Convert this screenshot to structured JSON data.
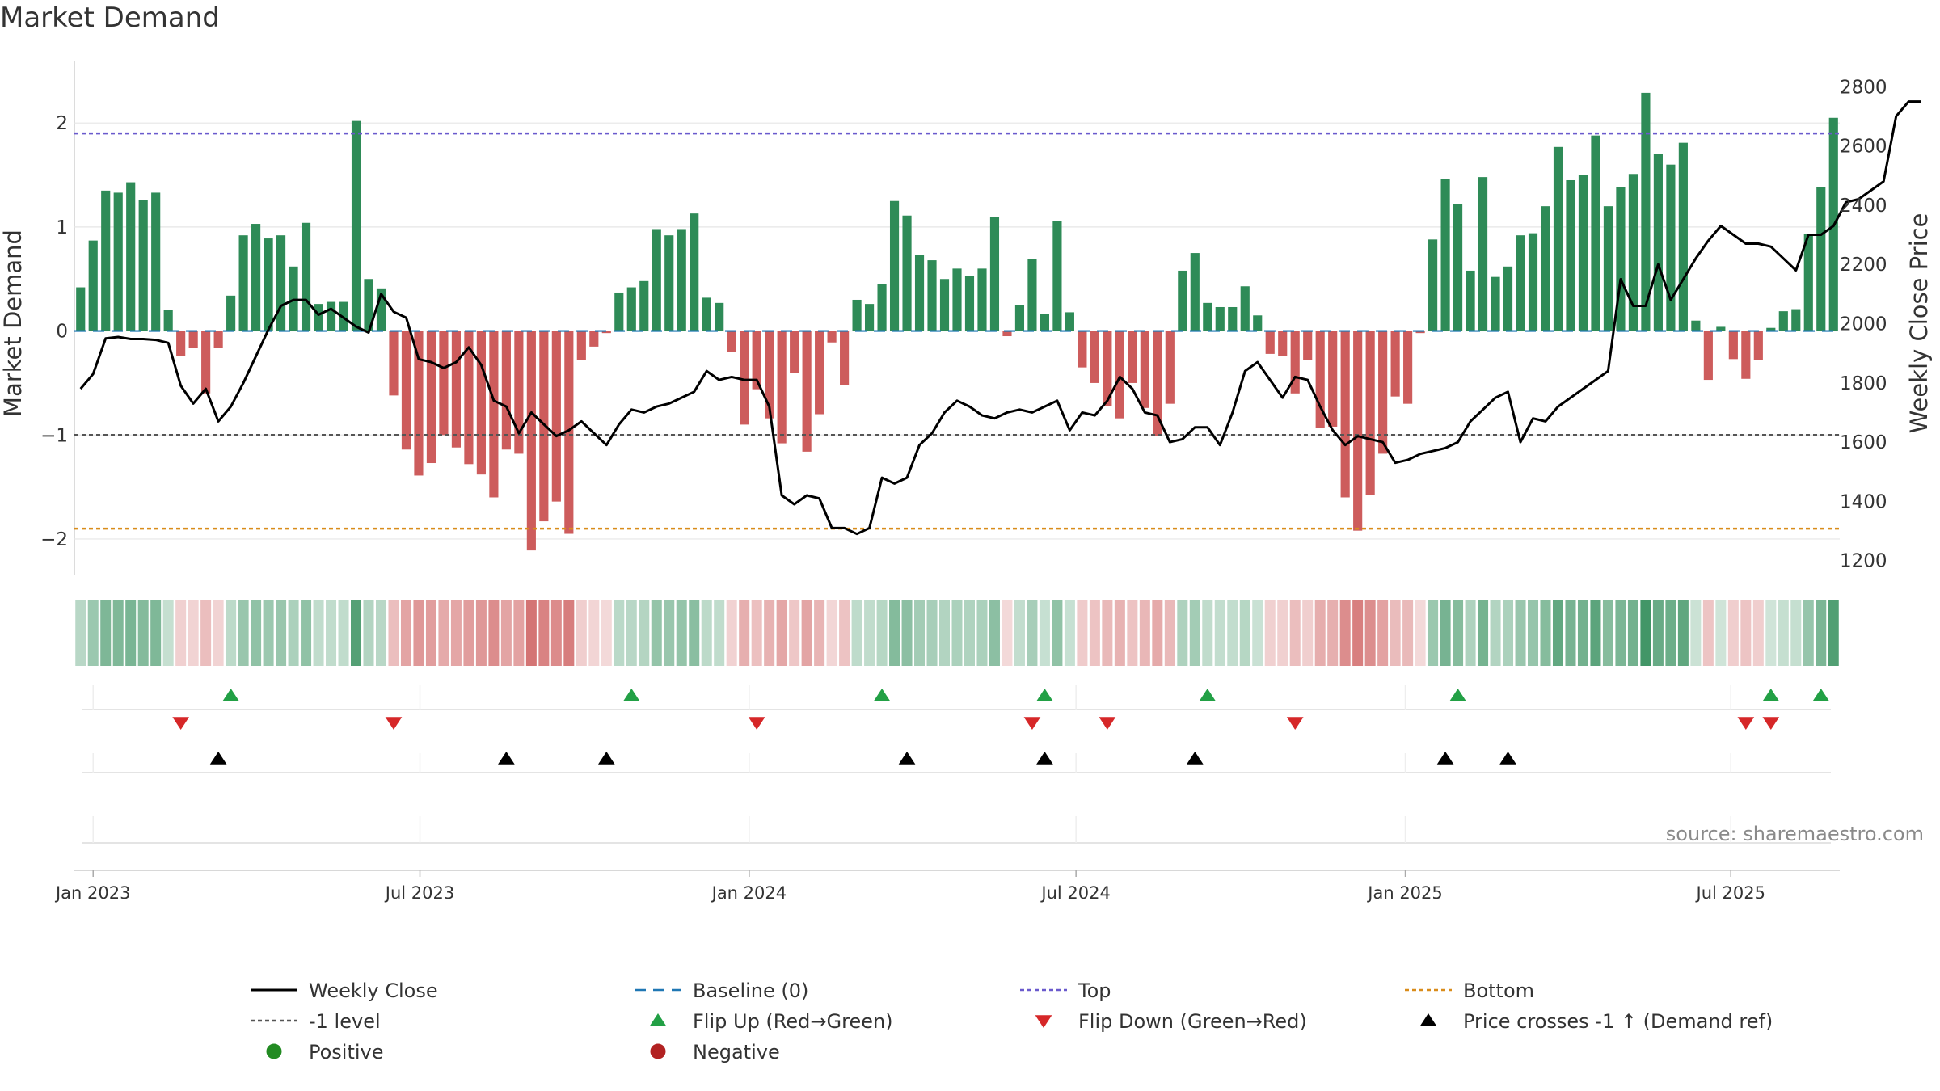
{
  "title": "Market Demand",
  "source": "source: sharemaestro.com",
  "colors": {
    "positive": "#2e8b57",
    "negative": "#cd5c5c",
    "close": "#000000",
    "baseline": "#1f77b4",
    "top": "#6a5acd",
    "level": "#555555",
    "bottom": "#d98c1a",
    "flip_up": "#22a045",
    "flip_down": "#d62728",
    "cross": "#000000",
    "grid": "#e6e6e6"
  },
  "chart_data": {
    "type": "bar+line",
    "title": "Market Demand",
    "ylabel": "Market Demand",
    "y2label": "Weekly Close Price",
    "ylim": [
      -2.35,
      2.6
    ],
    "y2lim": [
      1150,
      2888
    ],
    "yticks": [
      "2",
      "1",
      "0",
      "−1",
      "−2"
    ],
    "yticks_values": [
      2,
      1,
      0,
      -1,
      -2
    ],
    "y2ticks": [
      "2800",
      "2600",
      "2400",
      "2200",
      "2000",
      "1800",
      "1600",
      "1400",
      "1200"
    ],
    "y2ticks_values": [
      2800,
      2600,
      2400,
      2200,
      2000,
      1800,
      1600,
      1400,
      1200
    ],
    "xticks": [
      "Jan 2023",
      "Jul 2023",
      "Jan 2024",
      "Jul 2024",
      "Jan 2025",
      "Jul 2025"
    ],
    "xticks_week_index": [
      1.5,
      27.6,
      53.9,
      80.0,
      106.3,
      132.3
    ],
    "reference_lines": {
      "top": 1.9,
      "level": -1,
      "bottom": -1.9,
      "baseline": 0
    },
    "demand": [
      0.42,
      0.87,
      1.35,
      1.33,
      1.43,
      1.26,
      1.33,
      0.2,
      -0.24,
      -0.16,
      -0.6,
      -0.16,
      0.34,
      0.92,
      1.03,
      0.89,
      0.92,
      0.62,
      1.04,
      0.26,
      0.28,
      0.28,
      2.02,
      0.5,
      0.41,
      -0.62,
      -1.14,
      -1.39,
      -1.27,
      -1.0,
      -1.12,
      -1.28,
      -1.38,
      -1.6,
      -1.14,
      -1.18,
      -2.11,
      -1.83,
      -1.64,
      -1.95,
      -0.28,
      -0.15,
      -0.02,
      0.37,
      0.42,
      0.48,
      0.98,
      0.92,
      0.98,
      1.13,
      0.32,
      0.27,
      -0.2,
      -0.9,
      -0.56,
      -0.84,
      -1.08,
      -0.4,
      -1.16,
      -0.8,
      -0.11,
      -0.52,
      0.3,
      0.26,
      0.45,
      1.25,
      1.11,
      0.73,
      0.68,
      0.5,
      0.6,
      0.53,
      0.6,
      1.1,
      -0.05,
      0.25,
      0.69,
      0.16,
      1.06,
      0.18,
      -0.35,
      -0.5,
      -0.72,
      -0.84,
      -0.5,
      -0.74,
      -1.01,
      -0.7,
      0.58,
      0.75,
      0.27,
      0.23,
      0.23,
      0.43,
      0.15,
      -0.22,
      -0.24,
      -0.6,
      -0.28,
      -0.93,
      -0.92,
      -1.6,
      -1.92,
      -1.58,
      -1.18,
      -0.63,
      -0.7,
      -0.02,
      0.88,
      1.46,
      1.22,
      0.58,
      1.48,
      0.52,
      0.62,
      0.92,
      0.94,
      1.2,
      1.77,
      1.45,
      1.5,
      1.88,
      1.2,
      1.38,
      1.51,
      2.29,
      1.7,
      1.6,
      1.81,
      0.1,
      -0.47,
      0.04,
      -0.27,
      -0.46,
      -0.28,
      0.03,
      0.19,
      0.21,
      0.93,
      1.38,
      2.05
    ],
    "weekly_close": [
      1780,
      1830,
      1950,
      1955,
      1948,
      1948,
      1945,
      1935,
      1790,
      1730,
      1780,
      1670,
      1720,
      1800,
      1890,
      1980,
      2060,
      2080,
      2080,
      2030,
      2050,
      2020,
      1990,
      1970,
      2100,
      2040,
      2020,
      1880,
      1870,
      1850,
      1870,
      1920,
      1860,
      1740,
      1720,
      1630,
      1700,
      1660,
      1620,
      1640,
      1670,
      1630,
      1590,
      1660,
      1710,
      1700,
      1720,
      1730,
      1750,
      1770,
      1840,
      1810,
      1820,
      1810,
      1810,
      1720,
      1420,
      1390,
      1420,
      1410,
      1310,
      1310,
      1290,
      1310,
      1480,
      1460,
      1480,
      1590,
      1630,
      1700,
      1740,
      1720,
      1690,
      1680,
      1700,
      1710,
      1700,
      1720,
      1740,
      1640,
      1700,
      1690,
      1740,
      1820,
      1780,
      1700,
      1690,
      1600,
      1610,
      1650,
      1650,
      1590,
      1700,
      1840,
      1870,
      1810,
      1750,
      1820,
      1810,
      1720,
      1640,
      1590,
      1620,
      1610,
      1600,
      1530,
      1540,
      1560,
      1570,
      1580,
      1600,
      1670,
      1710,
      1750,
      1770,
      1600,
      1680,
      1670,
      1720,
      1750,
      1780,
      1810,
      1840,
      2150,
      2060,
      2060,
      2200,
      2080,
      2150,
      2220,
      2280,
      2330,
      2300,
      2270,
      2270,
      2260,
      2220,
      2180,
      2300,
      2300,
      2330,
      2410,
      2420,
      2450,
      2480,
      2700,
      2750,
      2750
    ],
    "flip_up_weeks": [
      12,
      44,
      64,
      77,
      90,
      110,
      135,
      139
    ],
    "flip_down_weeks": [
      8,
      25,
      54,
      76,
      82,
      97,
      133,
      135
    ],
    "price_cross_weeks": [
      11,
      34,
      42,
      66,
      77,
      89,
      109,
      114
    ]
  },
  "legend": [
    {
      "label": "Weekly Close",
      "marker": "solid-line"
    },
    {
      "label": "Baseline (0)",
      "marker": "dashed-line"
    },
    {
      "label": "Top",
      "marker": "dotted-line"
    },
    {
      "label": "Bottom",
      "marker": "dotted-line"
    },
    {
      "label": "-1 level",
      "marker": "dotted-line"
    },
    {
      "label": "Flip Up (Red→Green)",
      "marker": "triangle-up"
    },
    {
      "label": "Flip Down (Green→Red)",
      "marker": "triangle-down"
    },
    {
      "label": "Price crosses -1 ↑ (Demand ref)",
      "marker": "triangle-up"
    },
    {
      "label": "Positive",
      "marker": "circle"
    },
    {
      "label": "Negative",
      "marker": "circle"
    }
  ]
}
